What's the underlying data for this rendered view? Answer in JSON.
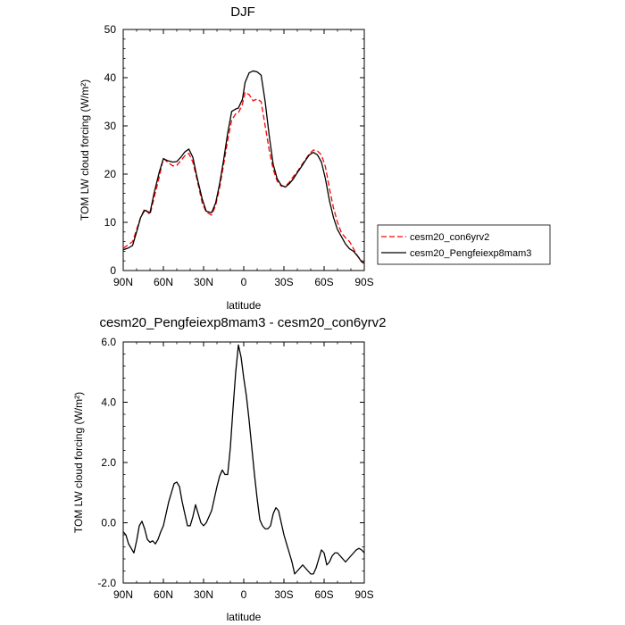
{
  "chart_data": [
    {
      "type": "line",
      "title": "DJF",
      "xlabel": "latitude",
      "ylabel": "TOM LW cloud forcing (W/m²)",
      "x_ticks": [
        {
          "value": 90,
          "label": "90N"
        },
        {
          "value": 60,
          "label": "60N"
        },
        {
          "value": 30,
          "label": "30N"
        },
        {
          "value": 0,
          "label": "0"
        },
        {
          "value": -30,
          "label": "30S"
        },
        {
          "value": -60,
          "label": "60S"
        },
        {
          "value": -90,
          "label": "90S"
        }
      ],
      "y_ticks": [
        {
          "value": 0,
          "label": "0"
        },
        {
          "value": 10,
          "label": "10"
        },
        {
          "value": 20,
          "label": "20"
        },
        {
          "value": 30,
          "label": "30"
        },
        {
          "value": 40,
          "label": "40"
        },
        {
          "value": 50,
          "label": "50"
        }
      ],
      "xlim": [
        90,
        -90
      ],
      "ylim": [
        0,
        50
      ],
      "grid": false,
      "legend_position": "right",
      "series": [
        {
          "name": "cesm20_con6yrv2",
          "color": "#ff0000",
          "dash": "dashed",
          "x": [
            90,
            86,
            83,
            80,
            77,
            74,
            70,
            67,
            63,
            60,
            57,
            53,
            50,
            47,
            44,
            41,
            38,
            35,
            31,
            28,
            24,
            21,
            18,
            15,
            12,
            9,
            6,
            4,
            1,
            -1,
            -4,
            -7,
            -10,
            -13,
            -16,
            -19,
            -22,
            -25,
            -28,
            -31,
            -34,
            -37,
            -40,
            -43,
            -46,
            -49,
            -52,
            -55,
            -58,
            -61,
            -64,
            -67,
            -70,
            -73,
            -76,
            -79,
            -82,
            -85,
            -88,
            -90
          ],
          "y": [
            4.6,
            5.4,
            6.0,
            8.5,
            11.0,
            12.8,
            11.6,
            15.0,
            19.5,
            23.3,
            22.5,
            21.7,
            21.8,
            22.8,
            23.8,
            24.3,
            22.5,
            19.0,
            14.0,
            12.1,
            11.5,
            13.5,
            17.2,
            22.0,
            27.0,
            31.2,
            32.5,
            32.7,
            34.5,
            37.0,
            36.5,
            35.2,
            35.6,
            35.0,
            30.0,
            25.0,
            21.0,
            18.5,
            17.5,
            17.5,
            18.3,
            19.5,
            20.5,
            21.8,
            23.0,
            24.2,
            25.0,
            24.8,
            24.0,
            21.5,
            17.0,
            13.0,
            10.0,
            7.8,
            6.8,
            6.0,
            4.5,
            3.0,
            2.0,
            1.5
          ]
        },
        {
          "name": "cesm20_Pengfeiexp8mam3",
          "color": "#000000",
          "dash": "solid",
          "x": [
            90,
            86,
            83,
            80,
            77,
            74,
            70,
            67,
            63,
            60,
            57,
            53,
            50,
            47,
            44,
            41,
            38,
            35,
            31,
            28,
            24,
            21,
            18,
            15,
            12,
            9,
            6,
            4,
            1,
            -1,
            -4,
            -7,
            -10,
            -13,
            -16,
            -19,
            -22,
            -25,
            -28,
            -31,
            -34,
            -37,
            -40,
            -43,
            -46,
            -49,
            -52,
            -55,
            -58,
            -61,
            -64,
            -67,
            -70,
            -73,
            -76,
            -79,
            -82,
            -85,
            -88,
            -90
          ],
          "y": [
            4.3,
            4.7,
            5.2,
            8.0,
            11.0,
            12.5,
            12.0,
            16.0,
            20.5,
            23.2,
            22.8,
            22.5,
            22.6,
            23.5,
            24.6,
            25.2,
            23.5,
            19.5,
            14.8,
            12.3,
            12.0,
            14.0,
            18.0,
            23.0,
            28.5,
            33.0,
            33.5,
            33.7,
            35.5,
            39.0,
            41.0,
            41.4,
            41.2,
            40.5,
            35.0,
            28.0,
            22.0,
            19.0,
            17.7,
            17.3,
            18.0,
            19.0,
            20.3,
            21.5,
            22.8,
            24.0,
            24.5,
            24.0,
            22.5,
            19.0,
            14.5,
            11.0,
            8.5,
            7.0,
            5.5,
            4.5,
            4.0,
            3.0,
            1.8,
            1.5
          ]
        }
      ]
    },
    {
      "type": "line",
      "title": "cesm20_Pengfeiexp8mam3 - cesm20_con6yrv2",
      "xlabel": "latitude",
      "ylabel": "TOM LW cloud forcing (W/m²)",
      "x_ticks": [
        {
          "value": 90,
          "label": "90N"
        },
        {
          "value": 60,
          "label": "60N"
        },
        {
          "value": 30,
          "label": "30N"
        },
        {
          "value": 0,
          "label": "0"
        },
        {
          "value": -30,
          "label": "30S"
        },
        {
          "value": -60,
          "label": "60S"
        },
        {
          "value": -90,
          "label": "90S"
        }
      ],
      "y_ticks": [
        {
          "value": -2,
          "label": "-2.0"
        },
        {
          "value": 0,
          "label": "0.0"
        },
        {
          "value": 2,
          "label": "2.0"
        },
        {
          "value": 4,
          "label": "4.0"
        },
        {
          "value": 6,
          "label": "6.0"
        }
      ],
      "xlim": [
        90,
        -90
      ],
      "ylim": [
        -2,
        6
      ],
      "grid": false,
      "series": [
        {
          "color": "#000000",
          "dash": "solid",
          "x": [
            90,
            88,
            86,
            84,
            82,
            80,
            78,
            76,
            74,
            72,
            70,
            68,
            66,
            64,
            62,
            60,
            58,
            56,
            54,
            52,
            50,
            48,
            46,
            44,
            42,
            40,
            38,
            36,
            34,
            32,
            30,
            28,
            26,
            24,
            22,
            20,
            18,
            16,
            14,
            12,
            10,
            8,
            6,
            4,
            2,
            0,
            -2,
            -4,
            -6,
            -8,
            -10,
            -12,
            -14,
            -16,
            -18,
            -20,
            -22,
            -24,
            -26,
            -28,
            -30,
            -32,
            -34,
            -36,
            -38,
            -40,
            -42,
            -44,
            -46,
            -48,
            -50,
            -52,
            -54,
            -56,
            -58,
            -60,
            -62,
            -64,
            -66,
            -68,
            -70,
            -72,
            -74,
            -76,
            -78,
            -80,
            -82,
            -84,
            -86,
            -88,
            -90
          ],
          "y": [
            -0.3,
            -0.4,
            -0.7,
            -0.85,
            -1.0,
            -0.6,
            -0.1,
            0.05,
            -0.2,
            -0.55,
            -0.65,
            -0.6,
            -0.7,
            -0.55,
            -0.3,
            -0.1,
            0.3,
            0.7,
            1.0,
            1.3,
            1.35,
            1.2,
            0.7,
            0.3,
            -0.1,
            -0.1,
            0.2,
            0.6,
            0.3,
            0.0,
            -0.1,
            0.0,
            0.2,
            0.4,
            0.8,
            1.2,
            1.55,
            1.75,
            1.6,
            1.6,
            2.5,
            3.8,
            5.0,
            5.9,
            5.5,
            4.8,
            4.2,
            3.4,
            2.5,
            1.6,
            0.8,
            0.1,
            -0.1,
            -0.2,
            -0.2,
            -0.1,
            0.3,
            0.5,
            0.4,
            0.0,
            -0.4,
            -0.7,
            -1.0,
            -1.3,
            -1.7,
            -1.6,
            -1.5,
            -1.4,
            -1.5,
            -1.6,
            -1.7,
            -1.7,
            -1.5,
            -1.2,
            -0.9,
            -1.0,
            -1.4,
            -1.3,
            -1.1,
            -1.0,
            -1.0,
            -1.1,
            -1.2,
            -1.3,
            -1.2,
            -1.1,
            -1.0,
            -0.9,
            -0.85,
            -0.9,
            -1.0
          ]
        }
      ]
    }
  ]
}
